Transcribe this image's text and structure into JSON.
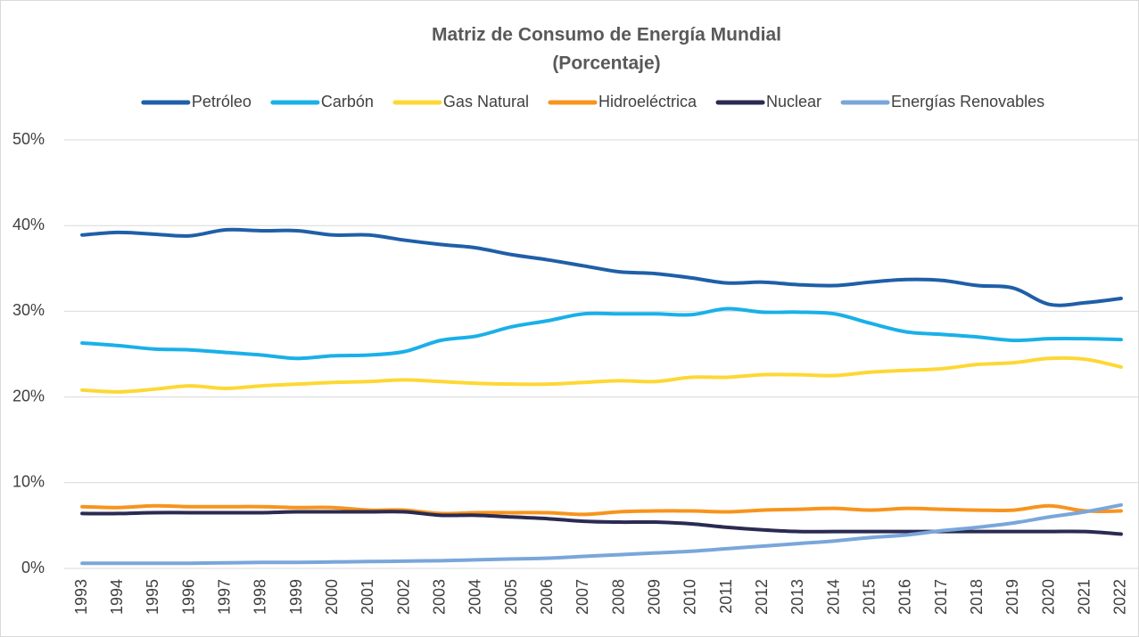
{
  "chart_data": {
    "type": "line",
    "title": "Matriz de Consumo de Energía Mundial",
    "subtitle": "(Porcentaje)",
    "categories": [
      "1993",
      "1994",
      "1995",
      "1996",
      "1997",
      "1998",
      "1999",
      "2000",
      "2001",
      "2002",
      "2003",
      "2004",
      "2005",
      "2006",
      "2007",
      "2008",
      "2009",
      "2010",
      "2011",
      "2012",
      "2013",
      "2014",
      "2015",
      "2016",
      "2017",
      "2018",
      "2019",
      "2020",
      "2021",
      "2022"
    ],
    "series": [
      {
        "name": "Petróleo",
        "color": "#1f5fa8",
        "values": [
          38.9,
          39.2,
          39.0,
          38.8,
          39.5,
          39.4,
          39.4,
          38.9,
          38.9,
          38.3,
          37.8,
          37.4,
          36.6,
          36.0,
          35.3,
          34.6,
          34.4,
          33.9,
          33.3,
          33.4,
          33.1,
          33.0,
          33.4,
          33.7,
          33.6,
          33.0,
          32.7,
          30.8,
          31.0,
          31.5
        ]
      },
      {
        "name": "Carbón",
        "color": "#1ab0e8",
        "values": [
          26.3,
          26.0,
          25.6,
          25.5,
          25.2,
          24.9,
          24.5,
          24.8,
          24.9,
          25.3,
          26.6,
          27.1,
          28.2,
          28.9,
          29.7,
          29.7,
          29.7,
          29.6,
          30.3,
          29.9,
          29.9,
          29.7,
          28.6,
          27.6,
          27.3,
          27.0,
          26.6,
          26.8,
          26.8,
          26.7
        ]
      },
      {
        "name": "Gas Natural",
        "color": "#fdd835",
        "values": [
          20.8,
          20.6,
          20.9,
          21.3,
          21.0,
          21.3,
          21.5,
          21.7,
          21.8,
          22.0,
          21.8,
          21.6,
          21.5,
          21.5,
          21.7,
          21.9,
          21.8,
          22.3,
          22.3,
          22.6,
          22.6,
          22.5,
          22.9,
          23.1,
          23.3,
          23.8,
          24.0,
          24.5,
          24.4,
          23.5
        ]
      },
      {
        "name": "Hidroeléctrica",
        "color": "#f7941d",
        "values": [
          7.2,
          7.1,
          7.3,
          7.2,
          7.2,
          7.2,
          7.1,
          7.1,
          6.8,
          6.8,
          6.4,
          6.5,
          6.5,
          6.5,
          6.3,
          6.6,
          6.7,
          6.7,
          6.6,
          6.8,
          6.9,
          7.0,
          6.8,
          7.0,
          6.9,
          6.8,
          6.8,
          7.3,
          6.7,
          6.7
        ]
      },
      {
        "name": "Nuclear",
        "color": "#2b2a52",
        "values": [
          6.4,
          6.4,
          6.5,
          6.5,
          6.5,
          6.5,
          6.6,
          6.6,
          6.6,
          6.6,
          6.2,
          6.2,
          6.0,
          5.8,
          5.5,
          5.4,
          5.4,
          5.2,
          4.8,
          4.5,
          4.3,
          4.3,
          4.3,
          4.3,
          4.3,
          4.3,
          4.3,
          4.3,
          4.3,
          4.0
        ]
      },
      {
        "name": "Energías Renovables",
        "color": "#7aa6da",
        "values": [
          0.6,
          0.6,
          0.6,
          0.6,
          0.65,
          0.7,
          0.7,
          0.75,
          0.8,
          0.85,
          0.9,
          1.0,
          1.1,
          1.2,
          1.4,
          1.6,
          1.8,
          2.0,
          2.3,
          2.6,
          2.9,
          3.2,
          3.6,
          3.9,
          4.4,
          4.8,
          5.3,
          6.0,
          6.6,
          7.4
        ]
      }
    ],
    "ylim": [
      0,
      50
    ],
    "yticks": [
      {
        "value": 0,
        "label": "0%"
      },
      {
        "value": 10,
        "label": "10%"
      },
      {
        "value": 20,
        "label": "20%"
      },
      {
        "value": 30,
        "label": "30%"
      },
      {
        "value": 40,
        "label": "40%"
      },
      {
        "value": 50,
        "label": "50%"
      }
    ],
    "grid": true,
    "legend": "top"
  }
}
